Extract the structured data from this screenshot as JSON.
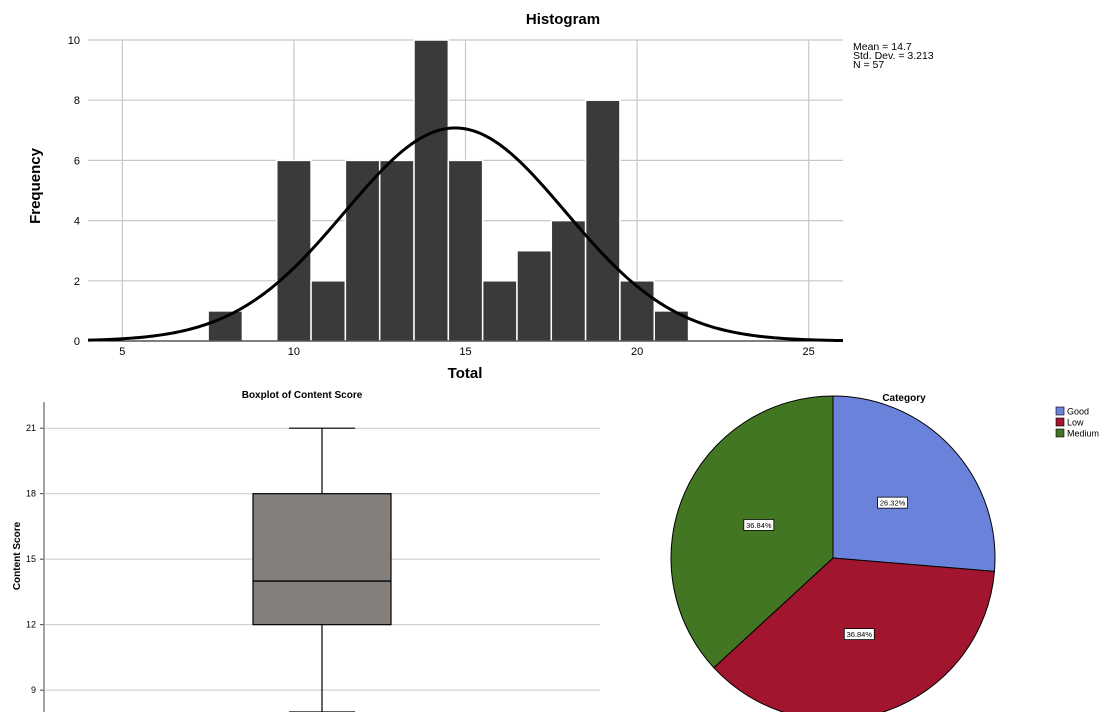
{
  "chart_data": [
    {
      "type": "bar",
      "title": "Histogram",
      "xlabel": "Total",
      "ylabel": "Frequency",
      "xlim": [
        4,
        26
      ],
      "ylim": [
        0,
        10
      ],
      "x_ticks": [
        "5",
        "10",
        "15",
        "20",
        "25"
      ],
      "y_ticks": [
        "0",
        "2",
        "4",
        "6",
        "8",
        "10"
      ],
      "bins": [
        {
          "start": 7.5,
          "end": 8.5,
          "value": 1
        },
        {
          "start": 9.5,
          "end": 10.5,
          "value": 6
        },
        {
          "start": 10.5,
          "end": 11.5,
          "value": 2
        },
        {
          "start": 11.5,
          "end": 12.5,
          "value": 6
        },
        {
          "start": 12.5,
          "end": 13.5,
          "value": 6
        },
        {
          "start": 13.5,
          "end": 14.5,
          "value": 10
        },
        {
          "start": 14.5,
          "end": 15.5,
          "value": 6
        },
        {
          "start": 15.5,
          "end": 16.5,
          "value": 2
        },
        {
          "start": 16.5,
          "end": 17.5,
          "value": 3
        },
        {
          "start": 17.5,
          "end": 18.5,
          "value": 4
        },
        {
          "start": 18.5,
          "end": 19.5,
          "value": 8
        },
        {
          "start": 19.5,
          "end": 20.5,
          "value": 2
        },
        {
          "start": 20.5,
          "end": 21.5,
          "value": 1
        }
      ],
      "normal_curve": {
        "mean": 14.7,
        "sd": 3.213,
        "n": 57,
        "bin_width": 1
      },
      "stats": [
        "Mean = 14.7",
        "Std. Dev. = 3.213",
        "N = 57"
      ],
      "grid": true,
      "colors": {
        "bar": "#3a3a3c",
        "curve": "#000000",
        "grid": "#c8c8c8"
      }
    },
    {
      "type": "boxplot",
      "title": "Boxplot of Content Score",
      "ylabel": "Content Score",
      "ylim": [
        8,
        22.2
      ],
      "y_ticks": [
        "9",
        "12",
        "15",
        "18",
        "21"
      ],
      "box": {
        "min": 8,
        "q1": 12,
        "median": 14,
        "q3": 18,
        "max": 21
      },
      "grid": true,
      "colors": {
        "box": "#857f7c"
      }
    },
    {
      "type": "pie",
      "title": "Category",
      "slices": [
        {
          "label": "Good",
          "value": 26.32,
          "text": "26.32%",
          "color": "#6b82db"
        },
        {
          "label": "Low",
          "value": 36.84,
          "text": "36.84%",
          "color": "#a2152f"
        },
        {
          "label": "Medium",
          "value": 36.84,
          "text": "36.84%",
          "color": "#437623"
        }
      ],
      "legend": "top-right"
    }
  ]
}
